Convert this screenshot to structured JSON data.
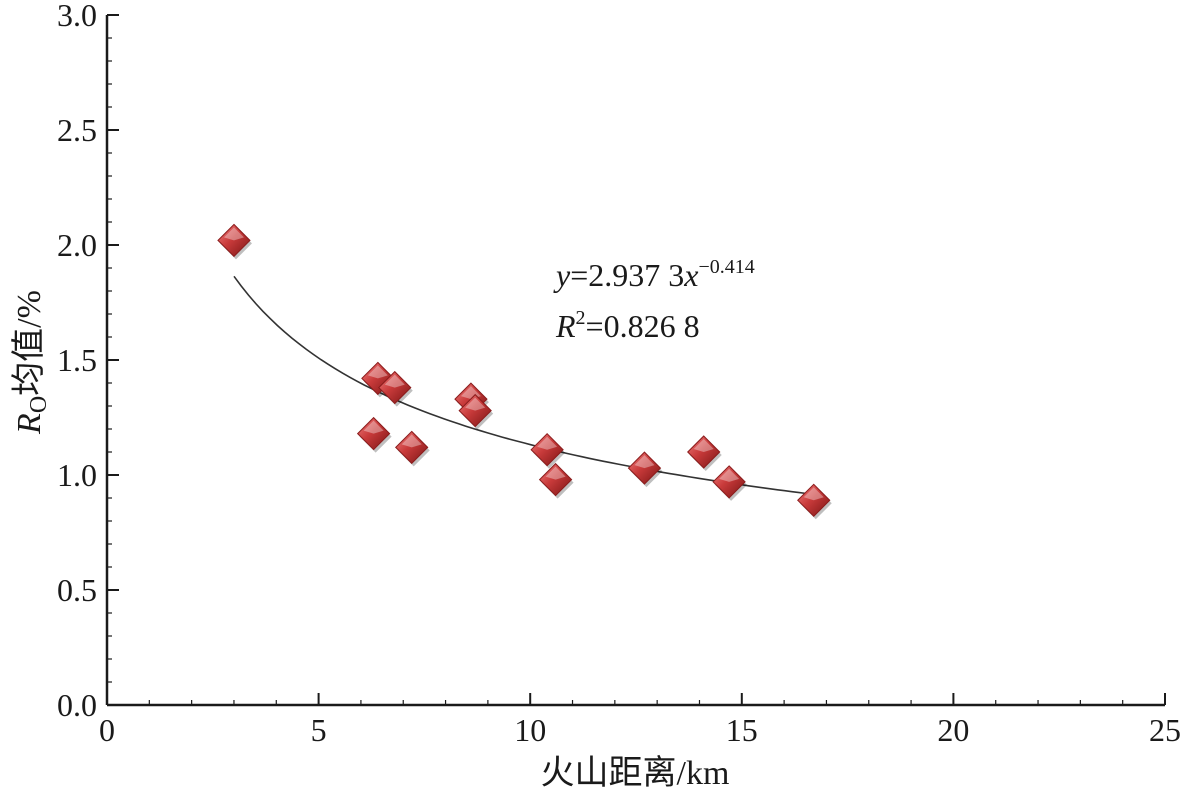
{
  "chart_data": {
    "type": "scatter",
    "xlabel": "火山距离/km",
    "ylabel": {
      "main": "R",
      "sub": "O",
      "rest": "均值/%"
    },
    "xlim": [
      0,
      25
    ],
    "ylim": [
      0,
      3.0
    ],
    "x_ticks": [
      0,
      5,
      10,
      15,
      20,
      25
    ],
    "x_tick_labels": [
      "0",
      "5",
      "10",
      "15",
      "20",
      "25"
    ],
    "y_ticks": [
      0,
      0.5,
      1.0,
      1.5,
      2.0,
      2.5,
      3.0
    ],
    "y_tick_labels": [
      "0.0",
      "0.5",
      "1.0",
      "1.5",
      "2.0",
      "2.5",
      "3.0"
    ],
    "grid": false,
    "series": [
      {
        "marker": "diamond",
        "color": "#c0392b",
        "points": [
          {
            "x": 3.0,
            "y": 2.02
          },
          {
            "x": 6.4,
            "y": 1.42
          },
          {
            "x": 6.8,
            "y": 1.38
          },
          {
            "x": 6.3,
            "y": 1.18
          },
          {
            "x": 7.2,
            "y": 1.12
          },
          {
            "x": 8.6,
            "y": 1.33
          },
          {
            "x": 8.7,
            "y": 1.28
          },
          {
            "x": 10.4,
            "y": 1.11
          },
          {
            "x": 10.6,
            "y": 0.98
          },
          {
            "x": 12.7,
            "y": 1.03
          },
          {
            "x": 14.1,
            "y": 1.1
          },
          {
            "x": 14.7,
            "y": 0.97
          },
          {
            "x": 16.7,
            "y": 0.89
          }
        ]
      }
    ],
    "trendline": {
      "type": "power",
      "a": 2.9373,
      "b": -0.414,
      "x_range": [
        3.0,
        16.7
      ],
      "color": "#333333"
    },
    "annotations": {
      "equation": {
        "y_var": "y",
        "eq_mid": "=2.937 3",
        "x_var": "x",
        "exponent": "−0.414"
      },
      "r_squared": {
        "var": "R",
        "exponent": "2",
        "value": "=0.826 8"
      }
    }
  }
}
